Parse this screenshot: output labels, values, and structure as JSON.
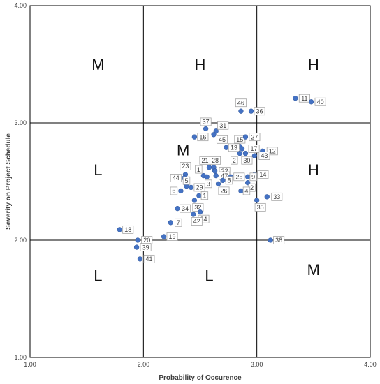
{
  "chart_data": {
    "type": "scatter",
    "xlabel": "Probability of Occurence",
    "ylabel": "Severity on Project Schedule",
    "xlim": [
      1.0,
      4.0
    ],
    "ylim": [
      1.0,
      4.0
    ],
    "x_ticks": [
      {
        "value": 1,
        "label": "1.00"
      },
      {
        "value": 2,
        "label": "2.00"
      },
      {
        "value": 3,
        "label": "3.00"
      },
      {
        "value": 4,
        "label": "4.00"
      }
    ],
    "y_ticks": [
      {
        "value": 1,
        "label": "1.00"
      },
      {
        "value": 2,
        "label": "2.00"
      },
      {
        "value": 3,
        "label": "3.00"
      },
      {
        "value": 4,
        "label": "4.00"
      }
    ],
    "grid_lines": [
      2,
      3
    ],
    "marker_color": "#4472c4",
    "zones": [
      {
        "x": 1.6,
        "y": 3.5,
        "label": "M"
      },
      {
        "x": 2.5,
        "y": 3.5,
        "label": "H"
      },
      {
        "x": 3.5,
        "y": 3.5,
        "label": "H"
      },
      {
        "x": 1.6,
        "y": 2.6,
        "label": "L"
      },
      {
        "x": 2.35,
        "y": 2.77,
        "label": "M"
      },
      {
        "x": 3.5,
        "y": 2.6,
        "label": "H"
      },
      {
        "x": 1.6,
        "y": 1.7,
        "label": "L"
      },
      {
        "x": 2.58,
        "y": 1.7,
        "label": "L"
      },
      {
        "x": 3.5,
        "y": 1.75,
        "label": "M"
      }
    ],
    "points": [
      {
        "label": "46",
        "x": 2.86,
        "y": 3.1,
        "dx": 0,
        "dy": -12
      },
      {
        "label": "36",
        "x": 2.95,
        "y": 3.1,
        "dx": 12,
        "dy": 0
      },
      {
        "label": "11",
        "x": 3.34,
        "y": 3.21,
        "dx": 13,
        "dy": 0
      },
      {
        "label": "40",
        "x": 3.48,
        "y": 3.18,
        "dx": 13,
        "dy": 0
      },
      {
        "label": "37",
        "x": 2.55,
        "y": 2.95,
        "dx": 0,
        "dy": -10
      },
      {
        "label": "31",
        "x": 2.64,
        "y": 2.93,
        "dx": 10,
        "dy": -8
      },
      {
        "label": "16",
        "x": 2.45,
        "y": 2.88,
        "dx": 12,
        "dy": 0
      },
      {
        "label": "45",
        "x": 2.62,
        "y": 2.9,
        "dx": 12,
        "dy": 7
      },
      {
        "label": "15",
        "x": 2.85,
        "y": 2.8,
        "dx": 0,
        "dy": -10
      },
      {
        "label": "27",
        "x": 2.9,
        "y": 2.88,
        "dx": 13,
        "dy": 0
      },
      {
        "label": "13",
        "x": 2.73,
        "y": 2.79,
        "dx": 11,
        "dy": 0
      },
      {
        "label": "17",
        "x": 2.87,
        "y": 2.78,
        "dx": 17,
        "dy": 0
      },
      {
        "label": "12",
        "x": 3.05,
        "y": 2.76,
        "dx": 14,
        "dy": 0
      },
      {
        "label": "2",
        "x": 2.85,
        "y": 2.74,
        "dx": -8,
        "dy": 10
      },
      {
        "label": "30",
        "x": 2.9,
        "y": 2.74,
        "dx": 2,
        "dy": 10
      },
      {
        "label": "43",
        "x": 2.98,
        "y": 2.72,
        "dx": 14,
        "dy": 0
      },
      {
        "label": "21",
        "x": 2.58,
        "y": 2.62,
        "dx": -6,
        "dy": -10
      },
      {
        "label": "28",
        "x": 2.62,
        "y": 2.62,
        "dx": 2,
        "dy": -10
      },
      {
        "label": "22",
        "x": 2.63,
        "y": 2.59,
        "dx": 14,
        "dy": 0
      },
      {
        "label": "23",
        "x": 2.37,
        "y": 2.56,
        "dx": 0,
        "dy": -12
      },
      {
        "label": "1",
        "x": 2.53,
        "y": 2.55,
        "dx": -7,
        "dy": -9
      },
      {
        "label": "47",
        "x": 2.64,
        "y": 2.55,
        "dx": 12,
        "dy": 0
      },
      {
        "label": "44",
        "x": 2.36,
        "y": 2.53,
        "dx": -12,
        "dy": 0
      },
      {
        "label": "25",
        "x": 2.77,
        "y": 2.54,
        "dx": 12,
        "dy": 0
      },
      {
        "label": "14",
        "x": 2.98,
        "y": 2.56,
        "dx": 12,
        "dy": 0
      },
      {
        "label": "3",
        "x": 2.56,
        "y": 2.54,
        "dx": 2,
        "dy": 10
      },
      {
        "label": "8",
        "x": 2.7,
        "y": 2.51,
        "dx": 9,
        "dy": 0
      },
      {
        "label": "9",
        "x": 2.92,
        "y": 2.54,
        "dx": 8,
        "dy": 0
      },
      {
        "label": "2",
        "x": 2.92,
        "y": 2.49,
        "dx": 6,
        "dy": 7
      },
      {
        "label": "26",
        "x": 2.66,
        "y": 2.48,
        "dx": 8,
        "dy": 10
      },
      {
        "label": "5",
        "x": 2.38,
        "y": 2.46,
        "dx": 0,
        "dy": -8
      },
      {
        "label": "29",
        "x": 2.42,
        "y": 2.45,
        "dx": 12,
        "dy": 0
      },
      {
        "label": "6",
        "x": 2.33,
        "y": 2.42,
        "dx": -10,
        "dy": 0
      },
      {
        "label": "4",
        "x": 2.86,
        "y": 2.42,
        "dx": 8,
        "dy": 0
      },
      {
        "label": "1",
        "x": 2.49,
        "y": 2.38,
        "dx": 8,
        "dy": 0
      },
      {
        "label": "33",
        "x": 3.09,
        "y": 2.37,
        "dx": 14,
        "dy": 0
      },
      {
        "label": "35",
        "x": 3.0,
        "y": 2.34,
        "dx": 5,
        "dy": 10
      },
      {
        "label": "34",
        "x": 2.3,
        "y": 2.27,
        "dx": 11,
        "dy": 0
      },
      {
        "label": "32",
        "x": 2.45,
        "y": 2.34,
        "dx": 5,
        "dy": 10
      },
      {
        "label": "24",
        "x": 2.5,
        "y": 2.24,
        "dx": 5,
        "dy": 10
      },
      {
        "label": "42",
        "x": 2.44,
        "y": 2.22,
        "dx": 5,
        "dy": 10
      },
      {
        "label": "7",
        "x": 2.24,
        "y": 2.15,
        "dx": 11,
        "dy": 0
      },
      {
        "label": "18",
        "x": 1.79,
        "y": 2.09,
        "dx": 12,
        "dy": 0
      },
      {
        "label": "19",
        "x": 2.18,
        "y": 2.03,
        "dx": 12,
        "dy": 0
      },
      {
        "label": "20",
        "x": 1.95,
        "y": 2.0,
        "dx": 13,
        "dy": 0
      },
      {
        "label": "38",
        "x": 3.12,
        "y": 2.0,
        "dx": 12,
        "dy": 0
      },
      {
        "label": "39",
        "x": 1.94,
        "y": 1.94,
        "dx": 13,
        "dy": 0
      },
      {
        "label": "41",
        "x": 1.97,
        "y": 1.84,
        "dx": 13,
        "dy": 0
      }
    ]
  }
}
